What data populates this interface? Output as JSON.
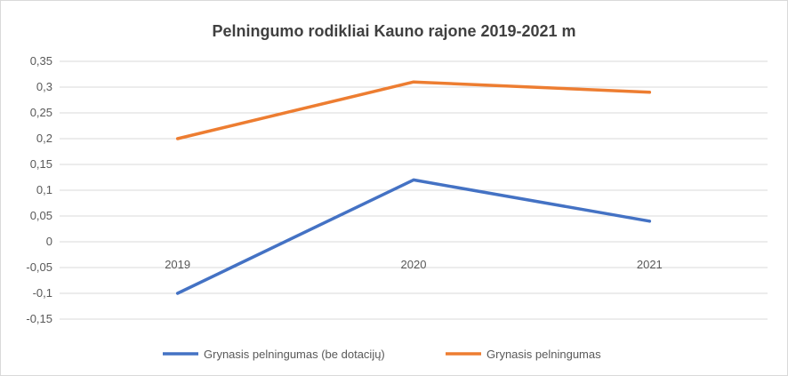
{
  "chart_data": {
    "type": "line",
    "title": "Pelningumo rodikliai Kauno rajone 2019-2021 m",
    "xlabel": "",
    "ylabel": "",
    "categories": [
      "2019",
      "2020",
      "2021"
    ],
    "ylim": [
      -0.15,
      0.35
    ],
    "y_ticks": [
      0.35,
      0.3,
      0.25,
      0.2,
      0.15,
      0.1,
      0.05,
      0,
      -0.05,
      -0.1,
      -0.15
    ],
    "y_tick_labels": [
      "0,35",
      "0,3",
      "0,25",
      "0,2",
      "0,15",
      "0,1",
      "0,05",
      "0",
      "-0,05",
      "-0,1",
      "-0,15"
    ],
    "grid": true,
    "legend_position": "bottom",
    "series": [
      {
        "name": "Grynasis pelningumas (be dotacijų)",
        "values": [
          -0.1,
          0.12,
          0.04
        ],
        "color": "#4472c4"
      },
      {
        "name": "Grynasis pelningumas",
        "values": [
          0.2,
          0.31,
          0.29
        ],
        "color": "#ed7d31"
      }
    ]
  }
}
